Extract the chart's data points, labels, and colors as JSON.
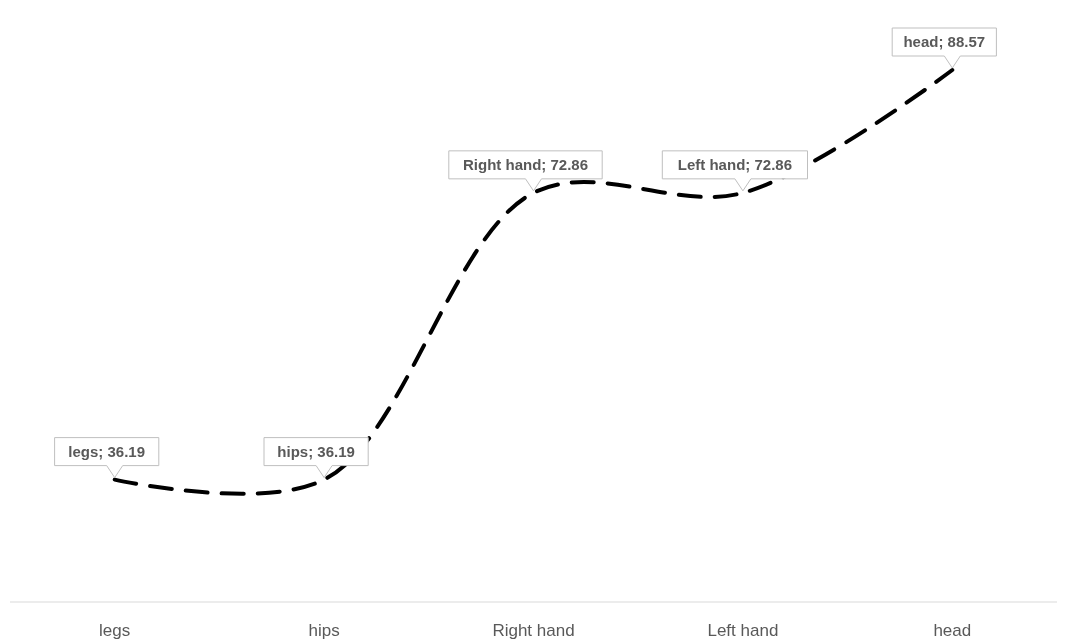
{
  "chart_data": {
    "type": "line",
    "categories": [
      "legs",
      "hips",
      "Right hand",
      "Left hand",
      "head"
    ],
    "series": [
      {
        "color": "#000000",
        "values": [
          36.19,
          36.19,
          72.86,
          72.86,
          88.57
        ],
        "value_labels": [
          "legs; 36.19",
          "hips; 36.19",
          "Right hand; 72.86",
          "Left hand; 72.86",
          "head; 88.57"
        ]
      }
    ],
    "line_style": "dashed",
    "marker": "none"
  }
}
